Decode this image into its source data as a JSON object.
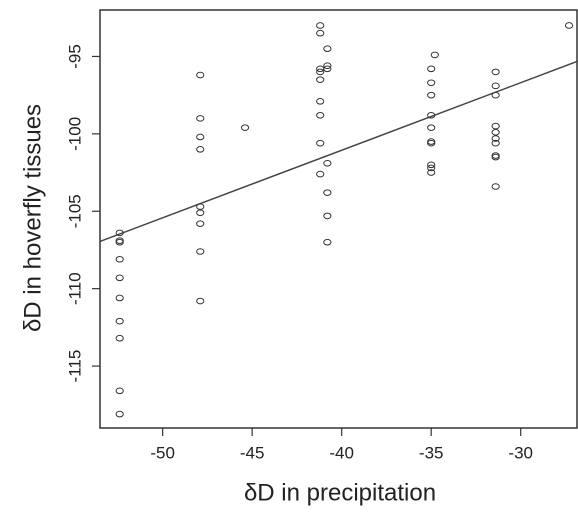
{
  "chart_data": {
    "type": "scatter",
    "x_label": "δD in precipitation",
    "y_label": "δD in hoverfly tissues",
    "x": [
      -52.4,
      -52.4,
      -52.4,
      -52.4,
      -52.4,
      -52.4,
      -52.4,
      -52.4,
      -52.4,
      -52.4,
      -47.9,
      -47.9,
      -47.9,
      -47.9,
      -47.9,
      -47.9,
      -47.9,
      -47.9,
      -47.9,
      -45.4,
      -41.2,
      -41.2,
      -41.2,
      -41.2,
      -41.2,
      -41.2,
      -41.2,
      -41.2,
      -41.2,
      -40.8,
      -40.8,
      -40.8,
      -40.8,
      -40.8,
      -40.8,
      -40.8,
      -34.8,
      -35.0,
      -35.0,
      -35.0,
      -35.0,
      -35.0,
      -35.0,
      -35.0,
      -35.0,
      -35.0,
      -35.0,
      -31.4,
      -31.4,
      -31.4,
      -31.4,
      -31.4,
      -31.4,
      -31.4,
      -31.4,
      -31.4,
      -31.4,
      -27.3
    ],
    "y": [
      -106.4,
      -106.9,
      -107.0,
      -108.1,
      -109.3,
      -110.6,
      -112.1,
      -113.2,
      -116.6,
      -118.1,
      -96.2,
      -99.0,
      -100.2,
      -101.0,
      -104.7,
      -105.1,
      -105.8,
      -107.6,
      -110.8,
      -99.6,
      -93.0,
      -93.5,
      -95.8,
      -96.0,
      -96.5,
      -97.9,
      -98.8,
      -100.6,
      -102.6,
      -94.5,
      -95.6,
      -95.8,
      -101.9,
      -103.8,
      -105.3,
      -107.0,
      -94.9,
      -95.8,
      -96.7,
      -97.5,
      -98.8,
      -99.6,
      -100.5,
      -100.6,
      -102.0,
      -102.2,
      -102.5,
      -96.0,
      -96.9,
      -97.5,
      -99.5,
      -99.9,
      -100.3,
      -100.6,
      -101.4,
      -101.5,
      -103.4,
      -93.0
    ],
    "color": "#333333",
    "trend_line": {
      "x": [
        -53.5,
        -26.8
      ],
      "y": [
        -106.95,
        -95.3
      ],
      "color": "#444444"
    },
    "xlim": [
      -53.5,
      -26.8
    ],
    "ylim": [
      -119.0,
      -92.0
    ],
    "xticks": [
      -50,
      -45,
      -40,
      -35,
      -30
    ],
    "yticks": [
      -115,
      -110,
      -105,
      -100,
      -95
    ]
  }
}
